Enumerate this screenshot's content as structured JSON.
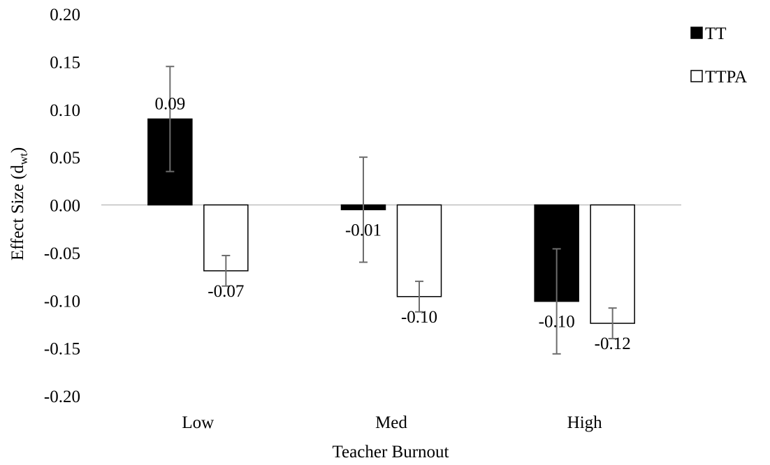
{
  "chart_data": {
    "type": "bar",
    "title": "",
    "xlabel": "Teacher Burnout",
    "ylabel": "Effect Size (d",
    "ylabel_subscript": "wt",
    "ylabel_close": ")",
    "ylim": [
      -0.2,
      0.2
    ],
    "yticks": [
      "0.20",
      "0.15",
      "0.10",
      "0.05",
      "0.00",
      "-0.05",
      "-0.10",
      "-0.15",
      "-0.20"
    ],
    "ytick_values": [
      0.2,
      0.15,
      0.1,
      0.05,
      0.0,
      -0.05,
      -0.1,
      -0.15,
      -0.2
    ],
    "categories": [
      "Low",
      "Med",
      "High"
    ],
    "legend_position": "top-right",
    "series": [
      {
        "name": "TT",
        "fill": "#000000",
        "values": [
          0.09,
          -0.005,
          -0.101
        ],
        "labels": [
          "0.09",
          "-0.01",
          "-0.10"
        ],
        "error_low": [
          0.035,
          -0.06,
          -0.156
        ],
        "error_high": [
          0.145,
          0.05,
          -0.046
        ]
      },
      {
        "name": "TTPA",
        "fill": "#ffffff",
        "values": [
          -0.069,
          -0.096,
          -0.124
        ],
        "labels": [
          "-0.07",
          "-0.10",
          "-0.12"
        ],
        "error_low": [
          -0.085,
          -0.112,
          -0.14
        ],
        "error_high": [
          -0.053,
          -0.08,
          -0.108
        ]
      }
    ]
  }
}
